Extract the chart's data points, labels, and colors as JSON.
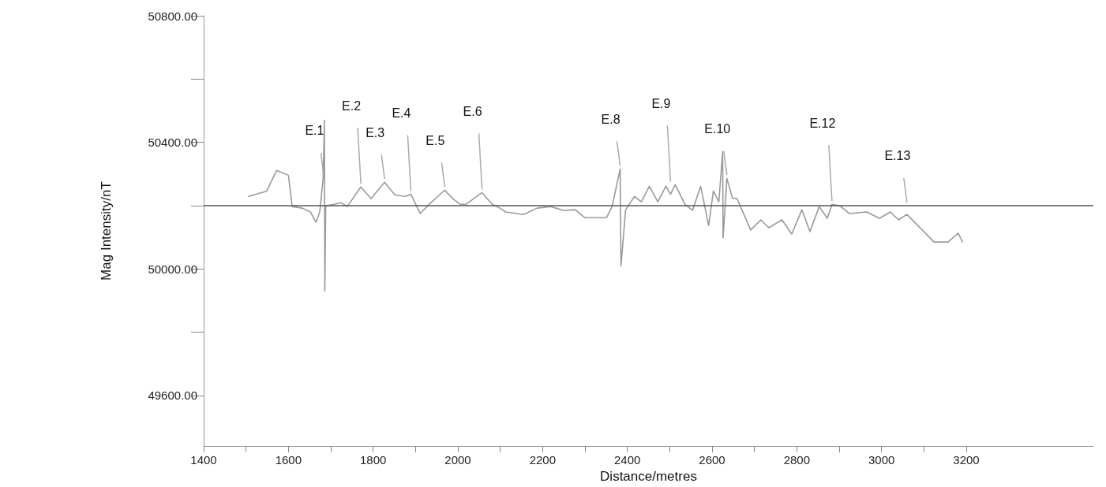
{
  "chart_data": {
    "type": "line",
    "xlabel": "Distance/metres",
    "ylabel": "Mag Intensity/nT",
    "xlim": [
      1400,
      3500
    ],
    "xticks": [
      1400,
      {
        "value": 1500,
        "label": null
      },
      1600,
      {
        "value": 1700,
        "label": null
      },
      1800,
      {
        "value": 1900,
        "label": null
      },
      2000,
      {
        "value": 2100,
        "label": null
      },
      2200,
      {
        "value": 2300,
        "label": null
      },
      2400,
      {
        "value": 2500,
        "label": null
      },
      2600,
      {
        "value": 2700,
        "label": null
      },
      2800,
      {
        "value": 2900,
        "label": null
      },
      3000,
      {
        "value": 3100,
        "label": null
      },
      3200
    ],
    "ylim": [
      49440,
      50800
    ],
    "yticks": [
      {
        "value": 49600,
        "label": "49600.00"
      },
      {
        "value": 49800,
        "label": null
      },
      {
        "value": 50000,
        "label": "50000.00"
      },
      {
        "value": 50200,
        "label": null
      },
      {
        "value": 50400,
        "label": "50400.00"
      },
      {
        "value": 50600,
        "label": null
      },
      {
        "value": 50800,
        "label": "50800.00"
      }
    ],
    "grid": false,
    "marker": "none",
    "line_style": "solid",
    "ref_lines": [
      {
        "axis": "y",
        "value": 50200,
        "color": "#555555"
      }
    ],
    "series": [
      {
        "color": "#9a9a9a",
        "x": [
          1506,
          1549,
          1572,
          1600,
          1609,
          1633,
          1652,
          1665,
          1674,
          1682,
          1685,
          1686,
          1688,
          1708,
          1725,
          1739,
          1771,
          1795,
          1827,
          1851,
          1876,
          1889,
          1911,
          1932,
          1969,
          1988,
          2006,
          2019,
          2057,
          2081,
          2099,
          2113,
          2155,
          2187,
          2219,
          2249,
          2277,
          2299,
          2351,
          2364,
          2383,
          2385,
          2396,
          2417,
          2433,
          2452,
          2472,
          2491,
          2502,
          2513,
          2536,
          2554,
          2573,
          2592,
          2603,
          2616,
          2625,
          2626,
          2635,
          2648,
          2659,
          2691,
          2715,
          2734,
          2765,
          2788,
          2812,
          2831,
          2853,
          2872,
          2883,
          2902,
          2924,
          2965,
          2995,
          3021,
          3040,
          3060,
          3096,
          3124,
          3157,
          3181,
          3191
        ],
        "values": [
          50229,
          50246,
          50311,
          50296,
          50197,
          50192,
          50180,
          50147,
          50180,
          50286,
          50470,
          49930,
          50200,
          50204,
          50209,
          50197,
          50259,
          50222,
          50274,
          50234,
          50229,
          50236,
          50175,
          50204,
          50249,
          50222,
          50204,
          50204,
          50241,
          50204,
          50192,
          50180,
          50172,
          50192,
          50197,
          50185,
          50187,
          50162,
          50162,
          50197,
          50316,
          50010,
          50187,
          50229,
          50212,
          50261,
          50212,
          50261,
          50236,
          50266,
          50204,
          50185,
          50261,
          50137,
          50246,
          50212,
          50370,
          50098,
          50286,
          50224,
          50222,
          50123,
          50155,
          50130,
          50155,
          50110,
          50187,
          50118,
          50197,
          50160,
          50204,
          50199,
          50175,
          50180,
          50160,
          50180,
          50155,
          50172,
          50123,
          50085,
          50085,
          50113,
          50085
        ]
      }
    ],
    "annotations": [
      {
        "text": "E.1",
        "x": 1684,
        "y": 50280
      },
      {
        "text": "E.2",
        "x": 1771,
        "y": 50259
      },
      {
        "text": "E.3",
        "x": 1827,
        "y": 50274
      },
      {
        "text": "E.4",
        "x": 1889,
        "y": 50236
      },
      {
        "text": "E.5",
        "x": 1969,
        "y": 50249
      },
      {
        "text": "E.6",
        "x": 2057,
        "y": 50241
      },
      {
        "text": "E.8",
        "x": 2383,
        "y": 50316
      },
      {
        "text": "E.9",
        "x": 2502,
        "y": 50266
      },
      {
        "text": "E.10",
        "x": 2635,
        "y": 50286
      },
      {
        "text": "E.12",
        "x": 2883,
        "y": 50204
      },
      {
        "text": "E.13",
        "x": 3060,
        "y": 50200
      }
    ]
  }
}
